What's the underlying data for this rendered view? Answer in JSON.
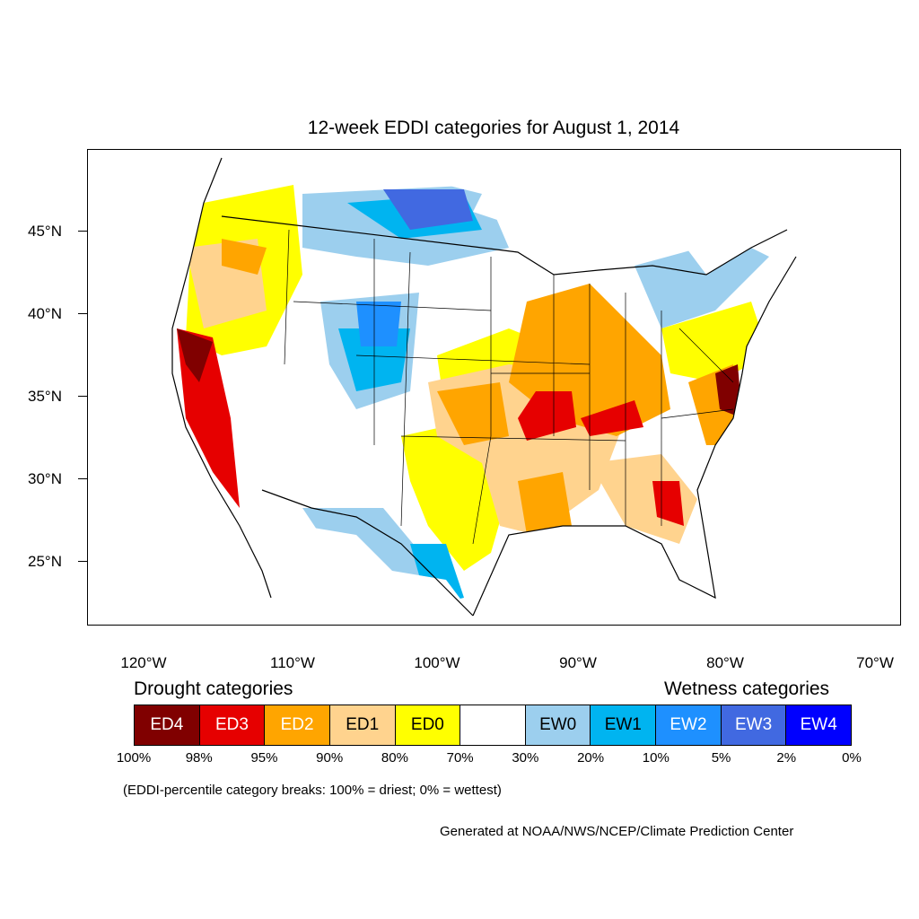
{
  "title": "12-week EDDI categories for August 1, 2014",
  "lat_labels": [
    "45°N",
    "40°N",
    "35°N",
    "30°N",
    "25°N"
  ],
  "lon_labels": [
    "120°W",
    "110°W",
    "100°W",
    "90°W",
    "80°W",
    "70°W"
  ],
  "drought_title": "Drought categories",
  "wetness_title": "Wetness categories",
  "categories": [
    {
      "label": "ED4",
      "color": "#800000",
      "text_color": "#ffffff"
    },
    {
      "label": "ED3",
      "color": "#e60000",
      "text_color": "#ffffff"
    },
    {
      "label": "ED2",
      "color": "#ffa500",
      "text_color": "#ffffff"
    },
    {
      "label": "ED1",
      "color": "#ffd38e",
      "text_color": "#000000"
    },
    {
      "label": "ED0",
      "color": "#ffff00",
      "text_color": "#000000"
    },
    {
      "label": "",
      "color": "#ffffff",
      "text_color": "#000000"
    },
    {
      "label": "EW0",
      "color": "#9ccfee",
      "text_color": "#000000"
    },
    {
      "label": "EW1",
      "color": "#00b4f0",
      "text_color": "#000000"
    },
    {
      "label": "EW2",
      "color": "#1e90ff",
      "text_color": "#ffffff"
    },
    {
      "label": "EW3",
      "color": "#4169e1",
      "text_color": "#ffffff"
    },
    {
      "label": "EW4",
      "color": "#0000ff",
      "text_color": "#ffffff"
    }
  ],
  "percent_breaks": [
    "100%",
    "98%",
    "95%",
    "90%",
    "80%",
    "70%",
    "30%",
    "20%",
    "10%",
    "5%",
    "2%",
    "0%"
  ],
  "note": "(EDDI-percentile category breaks: 100% = driest; 0% = wettest)",
  "credit": "Generated at NOAA/NWS/NCEP/Climate Prediction Center"
}
